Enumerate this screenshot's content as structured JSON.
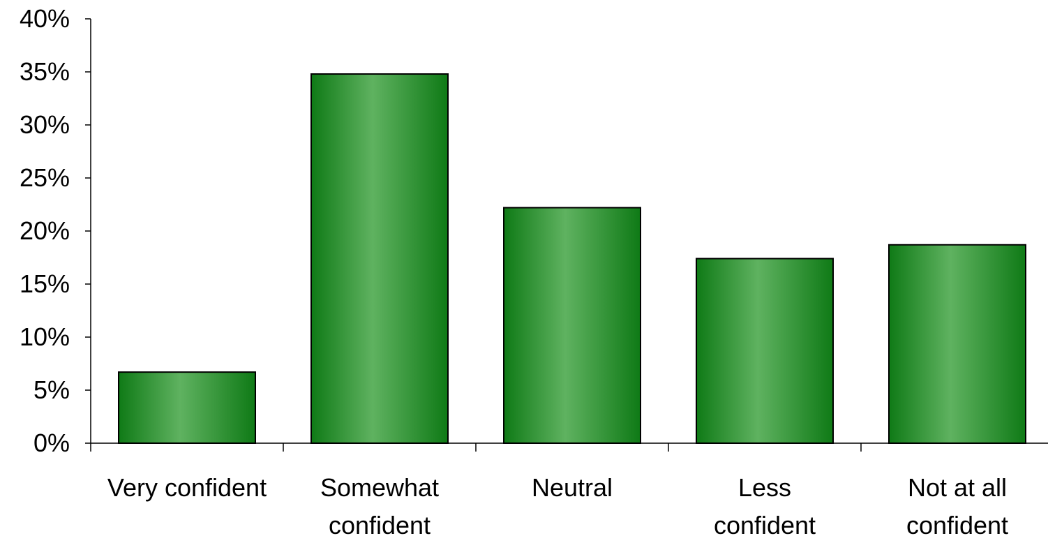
{
  "chart_data": {
    "type": "bar",
    "title": "",
    "xlabel": "",
    "ylabel": "",
    "categories": [
      [
        "Very confident"
      ],
      [
        "Somewhat",
        "confident"
      ],
      [
        "Neutral"
      ],
      [
        "Less",
        "confident"
      ],
      [
        "Not at all",
        "confident"
      ]
    ],
    "values": [
      6.7,
      34.8,
      22.2,
      17.4,
      18.7
    ],
    "ylim": [
      0,
      40
    ],
    "yticks": [
      0,
      5,
      10,
      15,
      20,
      25,
      30,
      35,
      40
    ],
    "ytick_labels": [
      "0%",
      "5%",
      "10%",
      "15%",
      "20%",
      "25%",
      "30%",
      "35%",
      "40%"
    ],
    "grid": false,
    "legend": "none",
    "bar_colors": {
      "edge": "#0f7a16",
      "center": "#5fb260",
      "outline": "#000000"
    }
  }
}
